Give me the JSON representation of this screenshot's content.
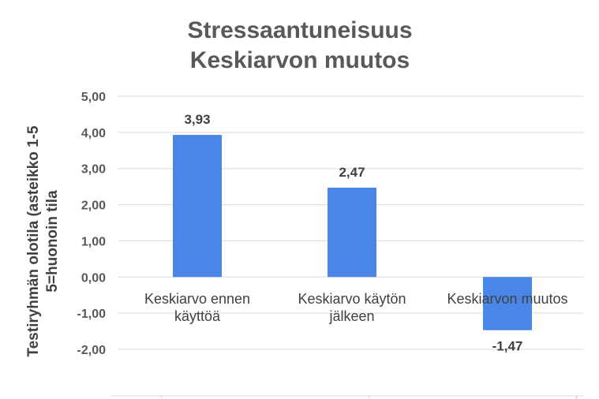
{
  "chart_data": {
    "type": "bar",
    "title_lines": [
      "Stressaantuneisuus",
      "Keskiarvon muutos"
    ],
    "ylabel_lines": [
      "Testiryhmän olotila (asteikko 1-5",
      "5=huonoin tila"
    ],
    "xlabel": "",
    "categories": [
      [
        "Keskiarvo ennen",
        "käyttöä"
      ],
      [
        "Keskiarvo käytön",
        "jälkeen"
      ],
      [
        "Keskiarvon muutos"
      ]
    ],
    "values": [
      3.93,
      2.47,
      -1.47
    ],
    "data_labels": [
      "3,93",
      "2,47",
      "-1,47"
    ],
    "ylim": [
      -2,
      5
    ],
    "yticks": [
      -2,
      -1,
      0,
      1,
      2,
      3,
      4,
      5
    ],
    "ytick_labels": [
      "-2,00",
      "-1,00",
      "0,00",
      "1,00",
      "2,00",
      "3,00",
      "4,00",
      "5,00"
    ],
    "grid": true,
    "legend": "none",
    "bar_color": "#4A86E8",
    "grid_color": "#d9d9d9"
  }
}
